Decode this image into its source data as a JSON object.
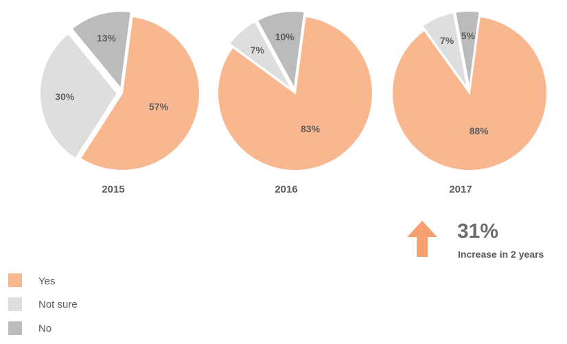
{
  "chart_data": {
    "type": "pie",
    "categories": [
      "Yes",
      "Not sure",
      "No"
    ],
    "charts": [
      {
        "year": "2015",
        "values": [
          57,
          30,
          13
        ],
        "labels": [
          "57%",
          "30%",
          "13%"
        ]
      },
      {
        "year": "2016",
        "values": [
          83,
          7,
          10
        ],
        "labels": [
          "83%",
          "7%",
          "10%"
        ]
      },
      {
        "year": "2017",
        "values": [
          88,
          7,
          5
        ],
        "labels": [
          "88%",
          "7%",
          "5%"
        ]
      }
    ],
    "legend_position": "bottom-left",
    "colors": {
      "Yes": "#f8b78f",
      "Not sure": "#dddee0",
      "No": "#bbbbbd"
    }
  },
  "callout": {
    "value": "31%",
    "caption": "Increase in 2 years",
    "arrow_color": "#f5a070"
  },
  "legend": {
    "items": [
      {
        "label": "Yes",
        "color": "#f8b78f"
      },
      {
        "label": "Not sure",
        "color": "#dddee0"
      },
      {
        "label": "No",
        "color": "#bbbbbd"
      }
    ]
  }
}
